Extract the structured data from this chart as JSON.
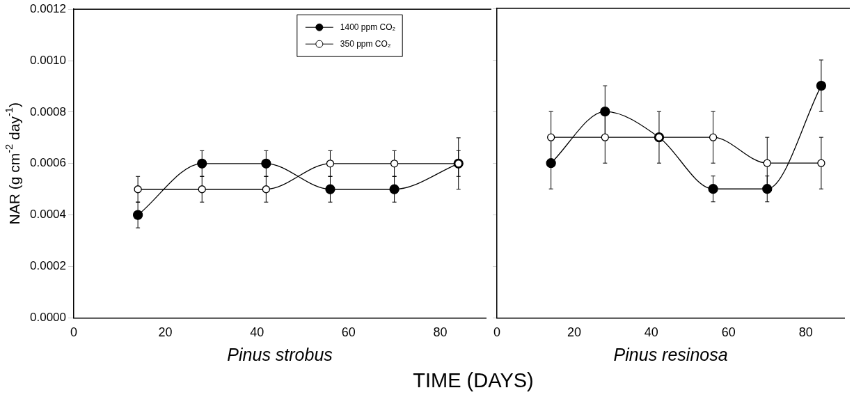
{
  "chart_data": [
    {
      "type": "line",
      "xlabel": "Pinus strobus",
      "ylabel": "NAR (g cm$^{-2}$ day$^{-1}$)",
      "annotations": [
        "TIME (DAYS)"
      ],
      "x": [
        14,
        28,
        42,
        56,
        70,
        84
      ],
      "xlim": [
        0,
        90
      ],
      "xticks": [
        0,
        20,
        40,
        60,
        80
      ],
      "ylim": [
        0,
        0.0012
      ],
      "yticks": [
        {
          "value": 0,
          "label": "0.0000"
        },
        0.0002,
        0.0004,
        0.0006,
        0.0008,
        {
          "value": 0.001,
          "label": "0.0010"
        },
        0.0012
      ],
      "legend": "top right",
      "marker": "circle",
      "line_style": "solid",
      "grid": false,
      "series": [
        {
          "name": "1400 ppm CO₂",
          "color": "#000000",
          "values": [
            0.0004,
            0.0006,
            0.0006,
            0.0005,
            0.0005,
            0.0006
          ],
          "errors": [
            5e-05,
            5e-05,
            5e-05,
            5e-05,
            5e-05,
            5e-05
          ]
        },
        {
          "name": "350 ppm CO₂",
          "color": "#000000",
          "values": [
            0.0005,
            0.0005,
            0.0005,
            0.0006,
            0.0006,
            0.0006
          ],
          "errors": [
            5e-05,
            5e-05,
            5e-05,
            5e-05,
            5e-05,
            0.0001
          ]
        }
      ]
    },
    {
      "type": "line",
      "xlabel": "Pinus resinosa",
      "x": [
        14,
        28,
        42,
        56,
        70,
        84
      ],
      "xlim": [
        0,
        90
      ],
      "xticks": [
        0,
        20,
        40,
        60,
        80
      ],
      "ylim": [
        0,
        0.0012
      ],
      "yticks": [
        0,
        0.0002,
        0.0004,
        0.0006,
        0.0008,
        0.001,
        0.0012
      ],
      "tick_labels": "x",
      "marker": "circle",
      "line_style": "solid",
      "grid": false,
      "series": [
        {
          "color": "#000000",
          "values": [
            0.0006,
            0.0008,
            0.0007,
            0.0005,
            0.0005,
            0.0009
          ],
          "errors": [
            0.0001,
            0.0001,
            null,
            5e-05,
            5e-05,
            0.0001
          ]
        },
        {
          "color": "#000000",
          "values": [
            0.0007,
            0.0007,
            0.0007,
            0.0007,
            0.0006,
            0.0006
          ],
          "errors": [
            0.0001,
            0.0001,
            0.0001,
            0.0001,
            0.0001,
            0.0001
          ]
        }
      ]
    }
  ]
}
